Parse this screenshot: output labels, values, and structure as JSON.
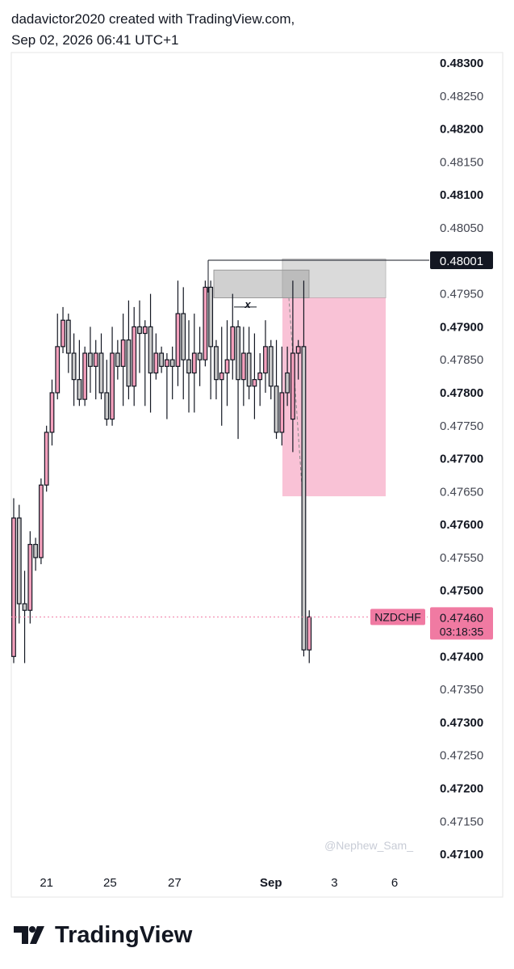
{
  "header": {
    "line1": "dadavictor2020 created with TradingView.com,",
    "line2": "Sep 02, 2026 06:41 UTC+1"
  },
  "footer": {
    "brand": "TradingView"
  },
  "chart_data": {
    "type": "candlestick",
    "symbol": "NZDCHF",
    "watermark": "@Nephew_Sam_",
    "up_color": "#f4a0bc",
    "down_color": "#c9c9c9",
    "x": [
      0,
      1,
      2,
      3,
      4,
      5,
      6,
      7,
      8,
      9,
      10,
      11,
      12,
      13,
      14,
      15,
      16,
      17,
      18,
      19,
      20,
      21,
      22,
      23,
      24,
      25,
      26,
      27,
      28,
      29,
      30,
      31,
      32,
      33,
      34,
      35,
      36,
      37,
      38,
      39,
      40,
      41,
      42,
      43,
      44,
      45,
      46,
      47,
      48,
      49,
      50,
      51,
      52,
      53,
      54
    ],
    "open": [
      0.474,
      0.4761,
      0.4748,
      0.4747,
      0.4757,
      0.4755,
      0.4766,
      0.4774,
      0.478,
      0.4787,
      0.4791,
      0.4786,
      0.4782,
      0.4779,
      0.4786,
      0.4784,
      0.4786,
      0.478,
      0.4776,
      0.4786,
      0.4784,
      0.4788,
      0.4781,
      0.479,
      0.4789,
      0.479,
      0.4783,
      0.4786,
      0.4784,
      0.4785,
      0.4784,
      0.4792,
      0.4785,
      0.4783,
      0.4786,
      0.4785,
      0.4796,
      0.4787,
      0.4782,
      0.4783,
      0.4785,
      0.479,
      0.4782,
      0.4786,
      0.4781,
      0.4782,
      0.4783,
      0.4787,
      0.4781,
      0.4774,
      0.4783,
      0.4776,
      0.4786,
      0.4787,
      0.4741
    ],
    "high": [
      0.4764,
      0.4763,
      0.4753,
      0.4759,
      0.4758,
      0.4767,
      0.4775,
      0.4782,
      0.4792,
      0.4793,
      0.4792,
      0.4789,
      0.4788,
      0.4787,
      0.479,
      0.4788,
      0.4789,
      0.4785,
      0.479,
      0.4788,
      0.4792,
      0.4794,
      0.4793,
      0.4794,
      0.4791,
      0.4795,
      0.4789,
      0.4787,
      0.4786,
      0.4787,
      0.4797,
      0.4796,
      0.4791,
      0.4792,
      0.479,
      0.4797,
      0.4797,
      0.4788,
      0.479,
      0.4791,
      0.4795,
      0.4791,
      0.479,
      0.479,
      0.4789,
      0.4786,
      0.4791,
      0.4788,
      0.4788,
      0.4787,
      0.4787,
      0.4797,
      0.4788,
      0.4797,
      0.4747
    ],
    "low": [
      0.4739,
      0.4745,
      0.4739,
      0.4745,
      0.4753,
      0.4754,
      0.4765,
      0.4772,
      0.4779,
      0.4786,
      0.4783,
      0.4778,
      0.4778,
      0.4778,
      0.478,
      0.4779,
      0.4779,
      0.4775,
      0.4775,
      0.4782,
      0.4778,
      0.4779,
      0.4778,
      0.4783,
      0.4778,
      0.4777,
      0.4782,
      0.4783,
      0.4776,
      0.4779,
      0.4781,
      0.4779,
      0.4777,
      0.4777,
      0.4781,
      0.4784,
      0.4779,
      0.4779,
      0.4775,
      0.4778,
      0.4782,
      0.4773,
      0.4778,
      0.4779,
      0.4776,
      0.4778,
      0.478,
      0.4779,
      0.4773,
      0.4772,
      0.4778,
      0.4771,
      0.4782,
      0.474,
      0.4739
    ],
    "close": [
      0.4761,
      0.4748,
      0.4747,
      0.4757,
      0.4755,
      0.4766,
      0.4774,
      0.478,
      0.4787,
      0.4791,
      0.4786,
      0.4782,
      0.4779,
      0.4786,
      0.4784,
      0.4786,
      0.478,
      0.4776,
      0.4786,
      0.4784,
      0.4788,
      0.4781,
      0.479,
      0.4789,
      0.479,
      0.4783,
      0.4786,
      0.4784,
      0.4785,
      0.4784,
      0.4792,
      0.4785,
      0.4783,
      0.4786,
      0.4785,
      0.4796,
      0.4787,
      0.4782,
      0.4783,
      0.4785,
      0.479,
      0.4782,
      0.4786,
      0.4781,
      0.4782,
      0.4783,
      0.4787,
      0.4781,
      0.4774,
      0.478,
      0.478,
      0.4786,
      0.4787,
      0.4741,
      0.4746
    ],
    "xlim": [
      -0.44,
      74.9
    ],
    "xticks": [
      {
        "value": 6,
        "label": "21"
      },
      {
        "value": 17.6,
        "label": "25"
      },
      {
        "value": 29.4,
        "label": "27"
      },
      {
        "value": 47,
        "label": "Sep"
      },
      {
        "value": 58.6,
        "label": "3"
      },
      {
        "value": 69.6,
        "label": "6"
      }
    ],
    "ylim": [
      0.47078,
      0.48316
    ],
    "yticks": [
      {
        "value": 0.483,
        "label": "0.48300"
      },
      {
        "value": 0.4825,
        "label": "0.48250"
      },
      {
        "value": 0.482,
        "label": "0.48200"
      },
      {
        "value": 0.4815,
        "label": "0.48150"
      },
      {
        "value": 0.481,
        "label": "0.48100"
      },
      {
        "value": 0.4805,
        "label": "0.48050"
      },
      {
        "value": 0.48,
        "label": "0.48000"
      },
      {
        "value": 0.4795,
        "label": "0.47950"
      },
      {
        "value": 0.479,
        "label": "0.47900"
      },
      {
        "value": 0.4785,
        "label": "0.47850"
      },
      {
        "value": 0.478,
        "label": "0.47800"
      },
      {
        "value": 0.4775,
        "label": "0.47750"
      },
      {
        "value": 0.477,
        "label": "0.47700"
      },
      {
        "value": 0.4765,
        "label": "0.47650"
      },
      {
        "value": 0.476,
        "label": "0.47600"
      },
      {
        "value": 0.4755,
        "label": "0.47550"
      },
      {
        "value": 0.475,
        "label": "0.47500"
      },
      {
        "value": 0.4745,
        "label": "0.47450"
      },
      {
        "value": 0.474,
        "label": "0.47400"
      },
      {
        "value": 0.4735,
        "label": "0.47350"
      },
      {
        "value": 0.473,
        "label": "0.47300"
      },
      {
        "value": 0.4725,
        "label": "0.47250"
      },
      {
        "value": 0.472,
        "label": "0.47200"
      },
      {
        "value": 0.4715,
        "label": "0.47150"
      },
      {
        "value": 0.471,
        "label": "0.47100"
      }
    ],
    "level": {
      "value": 0.48001,
      "label": "0.48001"
    },
    "last_price": {
      "value": 0.4746,
      "label": "0.47460",
      "countdown": "03:18:35"
    },
    "zone": {
      "top": 0.47986,
      "bottom": 0.47944
    },
    "position": {
      "stop": 0.48003,
      "entry": 0.47944,
      "target": 0.47643
    },
    "marker": "x"
  }
}
